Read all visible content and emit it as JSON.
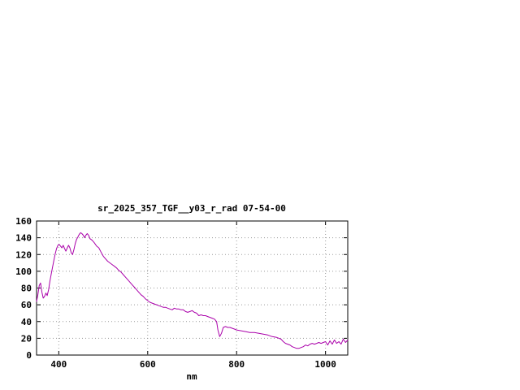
{
  "page": {
    "background": "#ffffff"
  },
  "chart_data": {
    "type": "line",
    "title": "sr_2025_357_TGF__y03_r_rad 07-54-00",
    "xlabel": "nm",
    "ylabel": "",
    "xlim": [
      350,
      1050
    ],
    "ylim": [
      0,
      160
    ],
    "xticks": [
      400,
      600,
      800,
      1000
    ],
    "yticks": [
      0,
      20,
      40,
      60,
      80,
      100,
      120,
      140,
      160
    ],
    "grid": true,
    "legend_position": "none",
    "colors": {
      "line": "#aa00aa",
      "grid": "#9a9a9a",
      "axis": "#000000",
      "text": "#000000"
    },
    "series": [
      {
        "name": "sr_2025_357_TGF__y03_r_rad",
        "color": "#aa00aa",
        "points": [
          [
            350,
            64
          ],
          [
            353,
            72
          ],
          [
            356,
            83
          ],
          [
            359,
            86
          ],
          [
            362,
            75
          ],
          [
            365,
            68
          ],
          [
            368,
            70
          ],
          [
            371,
            74
          ],
          [
            374,
            71
          ],
          [
            377,
            78
          ],
          [
            380,
            88
          ],
          [
            383,
            97
          ],
          [
            386,
            105
          ],
          [
            389,
            113
          ],
          [
            392,
            121
          ],
          [
            395,
            127
          ],
          [
            398,
            131
          ],
          [
            401,
            132
          ],
          [
            404,
            130
          ],
          [
            407,
            128
          ],
          [
            410,
            131
          ],
          [
            413,
            127
          ],
          [
            416,
            124
          ],
          [
            419,
            128
          ],
          [
            422,
            131
          ],
          [
            425,
            128
          ],
          [
            428,
            122
          ],
          [
            431,
            120
          ],
          [
            434,
            126
          ],
          [
            437,
            133
          ],
          [
            440,
            138
          ],
          [
            443,
            141
          ],
          [
            446,
            144
          ],
          [
            449,
            146
          ],
          [
            452,
            145
          ],
          [
            455,
            143
          ],
          [
            458,
            140
          ],
          [
            461,
            143
          ],
          [
            464,
            145
          ],
          [
            467,
            143
          ],
          [
            470,
            139
          ],
          [
            475,
            137
          ],
          [
            480,
            134
          ],
          [
            485,
            130
          ],
          [
            490,
            128
          ],
          [
            495,
            123
          ],
          [
            500,
            118
          ],
          [
            505,
            115
          ],
          [
            510,
            112
          ],
          [
            515,
            110
          ],
          [
            520,
            108
          ],
          [
            525,
            106
          ],
          [
            530,
            104
          ],
          [
            535,
            101
          ],
          [
            540,
            99
          ],
          [
            545,
            96
          ],
          [
            550,
            93
          ],
          [
            555,
            90
          ],
          [
            560,
            87
          ],
          [
            565,
            84
          ],
          [
            570,
            81
          ],
          [
            575,
            78
          ],
          [
            580,
            75
          ],
          [
            585,
            72
          ],
          [
            590,
            70
          ],
          [
            595,
            67
          ],
          [
            600,
            65
          ],
          [
            605,
            63
          ],
          [
            610,
            62
          ],
          [
            615,
            61
          ],
          [
            620,
            60
          ],
          [
            625,
            59
          ],
          [
            630,
            58
          ],
          [
            635,
            57
          ],
          [
            640,
            57
          ],
          [
            645,
            56
          ],
          [
            650,
            55
          ],
          [
            655,
            54
          ],
          [
            660,
            56
          ],
          [
            665,
            55
          ],
          [
            670,
            55
          ],
          [
            675,
            54
          ],
          [
            680,
            54
          ],
          [
            685,
            52
          ],
          [
            690,
            51
          ],
          [
            695,
            52
          ],
          [
            700,
            53
          ],
          [
            705,
            51
          ],
          [
            710,
            50
          ],
          [
            715,
            47
          ],
          [
            720,
            48
          ],
          [
            725,
            47
          ],
          [
            730,
            47
          ],
          [
            735,
            46
          ],
          [
            740,
            45
          ],
          [
            745,
            44
          ],
          [
            750,
            43
          ],
          [
            755,
            40
          ],
          [
            758,
            30
          ],
          [
            762,
            22
          ],
          [
            766,
            26
          ],
          [
            770,
            33
          ],
          [
            775,
            34
          ],
          [
            780,
            33
          ],
          [
            785,
            33
          ],
          [
            790,
            32
          ],
          [
            795,
            31
          ],
          [
            800,
            30
          ],
          [
            810,
            29
          ],
          [
            820,
            28
          ],
          [
            830,
            27
          ],
          [
            840,
            27
          ],
          [
            850,
            26
          ],
          [
            860,
            25
          ],
          [
            870,
            24
          ],
          [
            880,
            22
          ],
          [
            890,
            21
          ],
          [
            900,
            19
          ],
          [
            905,
            16
          ],
          [
            910,
            14
          ],
          [
            915,
            13
          ],
          [
            920,
            12
          ],
          [
            925,
            10
          ],
          [
            930,
            9
          ],
          [
            935,
            8
          ],
          [
            940,
            8
          ],
          [
            945,
            9
          ],
          [
            950,
            10
          ],
          [
            955,
            12
          ],
          [
            960,
            11
          ],
          [
            965,
            13
          ],
          [
            970,
            14
          ],
          [
            975,
            13
          ],
          [
            980,
            14
          ],
          [
            985,
            15
          ],
          [
            990,
            14
          ],
          [
            995,
            15
          ],
          [
            1000,
            16
          ],
          [
            1005,
            12
          ],
          [
            1010,
            17
          ],
          [
            1015,
            13
          ],
          [
            1020,
            18
          ],
          [
            1025,
            14
          ],
          [
            1030,
            16
          ],
          [
            1035,
            13
          ],
          [
            1040,
            19
          ],
          [
            1045,
            15
          ],
          [
            1050,
            18
          ]
        ]
      }
    ]
  }
}
